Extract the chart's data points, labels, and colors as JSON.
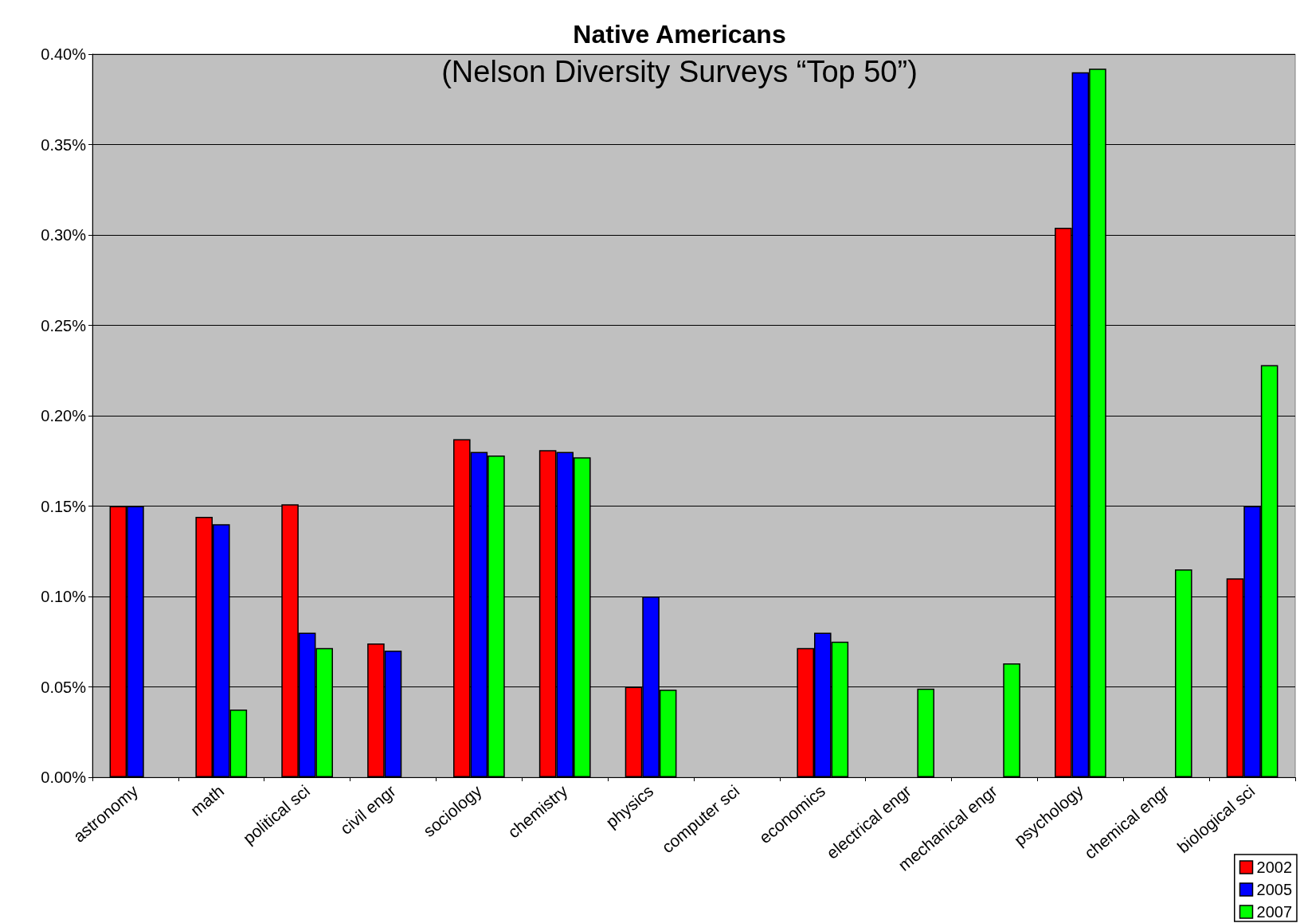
{
  "chart_data": {
    "type": "bar",
    "title": "Native Americans",
    "subtitle": "(Nelson Diversity Surveys “Top 50”)",
    "categories": [
      "astronomy",
      "math",
      "political sci",
      "civil engr",
      "sociology",
      "chemistry",
      "physics",
      "computer sci",
      "economics",
      "electrical engr",
      "mechanical engr",
      "psychology",
      "chemical engr",
      "biological sci"
    ],
    "series": [
      {
        "name": "2002",
        "color": "#ff0000",
        "values": [
          0.15,
          0.144,
          0.151,
          0.074,
          0.187,
          0.181,
          0.05,
          null,
          0.0715,
          null,
          null,
          0.304,
          null,
          0.11
        ]
      },
      {
        "name": "2005",
        "color": "#0000ff",
        "values": [
          0.15,
          0.14,
          0.08,
          0.07,
          0.18,
          0.18,
          0.1,
          null,
          0.08,
          null,
          null,
          0.39,
          null,
          0.15
        ]
      },
      {
        "name": "2007",
        "color": "#00ff00",
        "values": [
          null,
          0.0375,
          0.0715,
          null,
          0.178,
          0.177,
          0.0485,
          null,
          0.075,
          0.049,
          0.063,
          0.392,
          0.115,
          0.228
        ]
      }
    ],
    "ylim": [
      0,
      0.4
    ],
    "yticks": [
      {
        "value": 0,
        "label": "0.00%"
      },
      {
        "value": 0.05,
        "label": "0.05%"
      },
      {
        "value": 0.1,
        "label": "0.10%"
      },
      {
        "value": 0.15,
        "label": "0.15%"
      },
      {
        "value": 0.2,
        "label": "0.20%"
      },
      {
        "value": 0.25,
        "label": "0.25%"
      },
      {
        "value": 0.3,
        "label": "0.30%"
      },
      {
        "value": 0.35,
        "label": "0.35%"
      },
      {
        "value": 0.4,
        "label": "0.40%"
      }
    ],
    "grid": "y",
    "legend": "bottom right"
  }
}
